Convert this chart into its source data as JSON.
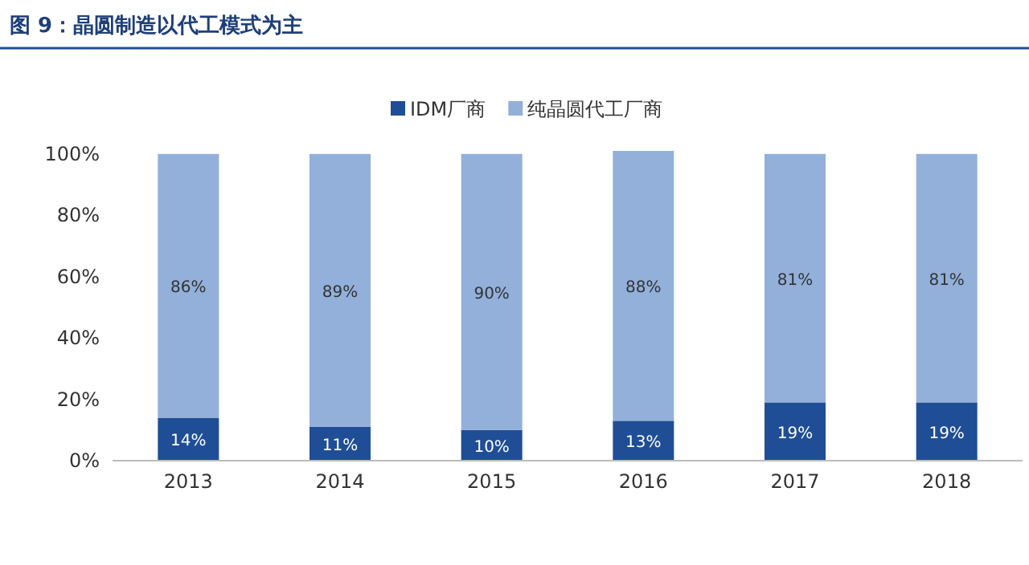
{
  "chart_data": {
    "type": "bar",
    "title": "图 9：晶圆制造以代工模式为主",
    "stacked": true,
    "legend": "top",
    "grid": false,
    "categories": [
      "2013",
      "2014",
      "2015",
      "2016",
      "2017",
      "2018"
    ],
    "ylim": [
      0,
      101
    ],
    "yticks": [
      {
        "value": 0,
        "label": "0%"
      },
      {
        "value": 20,
        "label": "20%"
      },
      {
        "value": 40,
        "label": "40%"
      },
      {
        "value": 60,
        "label": "60%"
      },
      {
        "value": 80,
        "label": "80%"
      },
      {
        "value": 100,
        "label": "100%"
      }
    ],
    "series": [
      {
        "name": "IDM厂商",
        "color": "#1f4e96",
        "values": [
          14,
          11,
          10,
          13,
          19,
          19
        ],
        "value_labels": [
          "14%",
          "11%",
          "10%",
          "13%",
          "19%",
          "19%"
        ]
      },
      {
        "name": "纯晶圆代工厂商",
        "color": "#92b0da",
        "values": [
          86,
          89,
          90,
          88,
          81,
          81
        ],
        "value_labels": [
          "86%",
          "89%",
          "90%",
          "88%",
          "81%",
          "81%"
        ]
      }
    ]
  }
}
